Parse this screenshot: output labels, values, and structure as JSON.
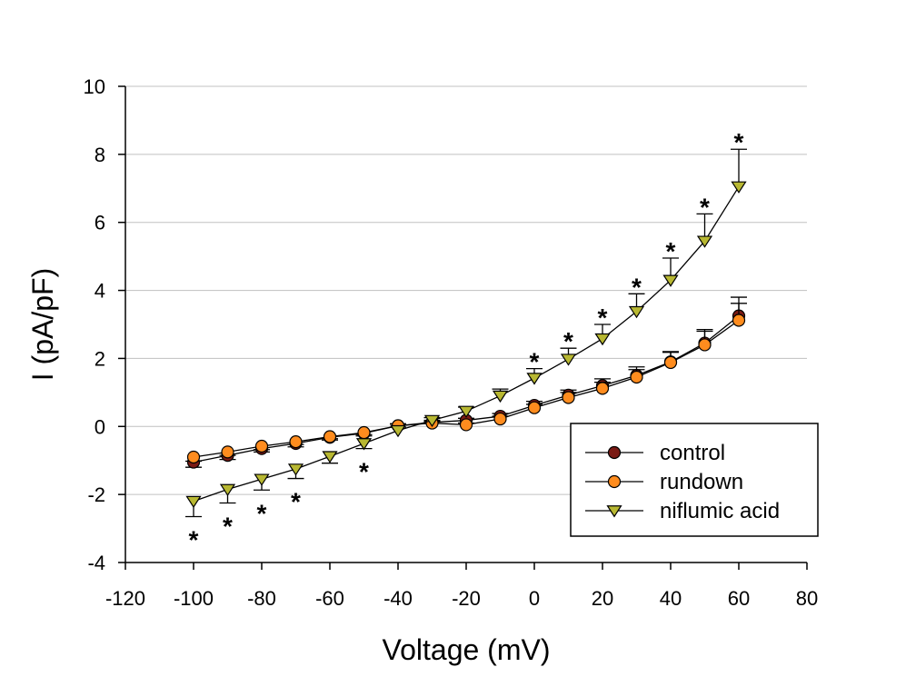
{
  "chart_data": {
    "type": "line",
    "xlabel": "Voltage (mV)",
    "ylabel": "I (pA/pF)",
    "xlim": [
      -120,
      80
    ],
    "ylim": [
      -4,
      10
    ],
    "xticks": [
      -120,
      -100,
      -80,
      -60,
      -40,
      -20,
      0,
      20,
      40,
      60,
      80
    ],
    "yticks": [
      -4,
      -2,
      0,
      2,
      4,
      6,
      8,
      10
    ],
    "grid": "horizontal",
    "legend_position": "bottom-right",
    "x": [
      -100,
      -90,
      -80,
      -70,
      -60,
      -50,
      -40,
      -30,
      -20,
      -10,
      0,
      10,
      20,
      30,
      40,
      50,
      60
    ],
    "series": [
      {
        "name": "control",
        "marker": "circle",
        "color": "#7a1a14",
        "values": [
          -1.05,
          -0.85,
          -0.65,
          -0.5,
          -0.32,
          -0.2,
          0.02,
          0.12,
          0.18,
          0.3,
          0.62,
          0.92,
          1.2,
          1.5,
          1.9,
          2.45,
          3.25
        ],
        "errors": [
          0.15,
          0.12,
          0.1,
          0.1,
          0.08,
          0.08,
          0.06,
          0.06,
          0.06,
          0.08,
          0.12,
          0.15,
          0.2,
          0.25,
          0.3,
          0.4,
          0.55
        ]
      },
      {
        "name": "rundown",
        "marker": "circle",
        "color": "#ff8c1e",
        "values": [
          -0.9,
          -0.75,
          -0.58,
          -0.45,
          -0.3,
          -0.18,
          0.02,
          0.1,
          0.05,
          0.22,
          0.55,
          0.85,
          1.12,
          1.45,
          1.88,
          2.4,
          3.12
        ],
        "errors": [
          0.12,
          0.1,
          0.1,
          0.08,
          0.06,
          0.06,
          0.05,
          0.05,
          0.05,
          0.08,
          0.1,
          0.15,
          0.18,
          0.22,
          0.3,
          0.4,
          0.5
        ]
      },
      {
        "name": "niflumic acid",
        "marker": "triangle-down",
        "color": "#b8b832",
        "values": [
          -2.2,
          -1.85,
          -1.55,
          -1.25,
          -0.88,
          -0.5,
          -0.12,
          0.18,
          0.45,
          0.9,
          1.42,
          1.98,
          2.58,
          3.38,
          4.3,
          5.45,
          7.05
        ],
        "errors": [
          0.45,
          0.4,
          0.32,
          0.28,
          0.2,
          0.15,
          0.1,
          0.08,
          0.12,
          0.2,
          0.28,
          0.32,
          0.42,
          0.52,
          0.65,
          0.8,
          1.1
        ]
      }
    ],
    "significance_marks": [
      {
        "x": -100,
        "position": "below",
        "label": "*"
      },
      {
        "x": -90,
        "position": "below",
        "label": "*"
      },
      {
        "x": -80,
        "position": "below",
        "label": "*"
      },
      {
        "x": -70,
        "position": "below",
        "label": "*"
      },
      {
        "x": -50,
        "position": "below",
        "label": "*"
      },
      {
        "x": 0,
        "position": "above",
        "label": "*"
      },
      {
        "x": 10,
        "position": "above",
        "label": "*"
      },
      {
        "x": 20,
        "position": "above",
        "label": "*"
      },
      {
        "x": 30,
        "position": "above",
        "label": "*"
      },
      {
        "x": 40,
        "position": "above",
        "label": "*"
      },
      {
        "x": 50,
        "position": "above",
        "label": "*"
      },
      {
        "x": 60,
        "position": "above",
        "label": "*"
      }
    ]
  }
}
